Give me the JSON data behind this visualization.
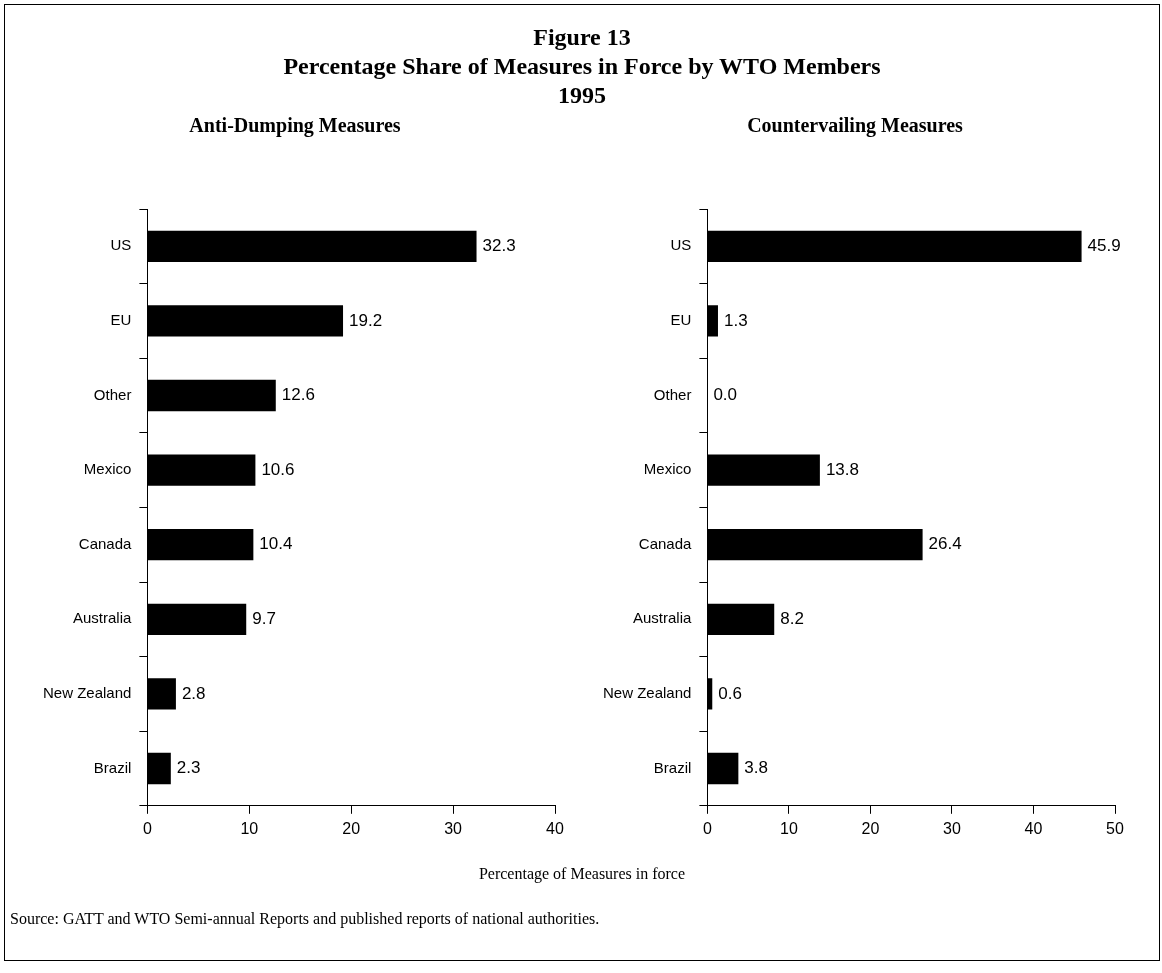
{
  "chart_data": [
    {
      "type": "other",
      "title": "Figure 13\nPercentage Share of Measures in Force by WTO Members\n1995",
      "annotations": [
        "Percentage of Measures in force",
        "Source:  GATT  and WTO Semi-annual Reports and published reports of national authorities."
      ]
    },
    {
      "type": "bar",
      "orientation": "horizontal",
      "title": "Anti-Dumping Measures",
      "categories": [
        "US",
        "EU",
        "Other",
        "Mexico",
        "Canada",
        "Australia",
        "New Zealand",
        "Brazil"
      ],
      "values": [
        32.3,
        19.2,
        12.6,
        10.6,
        10.4,
        9.7,
        2.8,
        2.3
      ],
      "value_labels": [
        "32.3",
        "19.2",
        "12.6",
        "10.6",
        "10.4",
        "9.7",
        "2.8",
        "2.3"
      ],
      "color": "#000000",
      "xlim": [
        0,
        40
      ],
      "xticks": [
        0,
        10,
        20,
        30,
        40
      ],
      "grid": false,
      "legend": false
    },
    {
      "type": "bar",
      "orientation": "horizontal",
      "title": "Countervailing Measures",
      "categories": [
        "US",
        "EU",
        "Other",
        "Mexico",
        "Canada",
        "Australia",
        "New Zealand",
        "Brazil"
      ],
      "values": [
        45.9,
        1.3,
        0.0,
        13.8,
        26.4,
        8.2,
        0.6,
        3.8
      ],
      "value_labels": [
        "45.9",
        "1.3",
        "0.0",
        "13.8",
        "26.4",
        "8.2",
        "0.6",
        "3.8"
      ],
      "color": "#000000",
      "xlim": [
        0,
        50
      ],
      "xticks": [
        0,
        10,
        20,
        30,
        40,
        50
      ],
      "grid": false,
      "legend": false
    }
  ]
}
